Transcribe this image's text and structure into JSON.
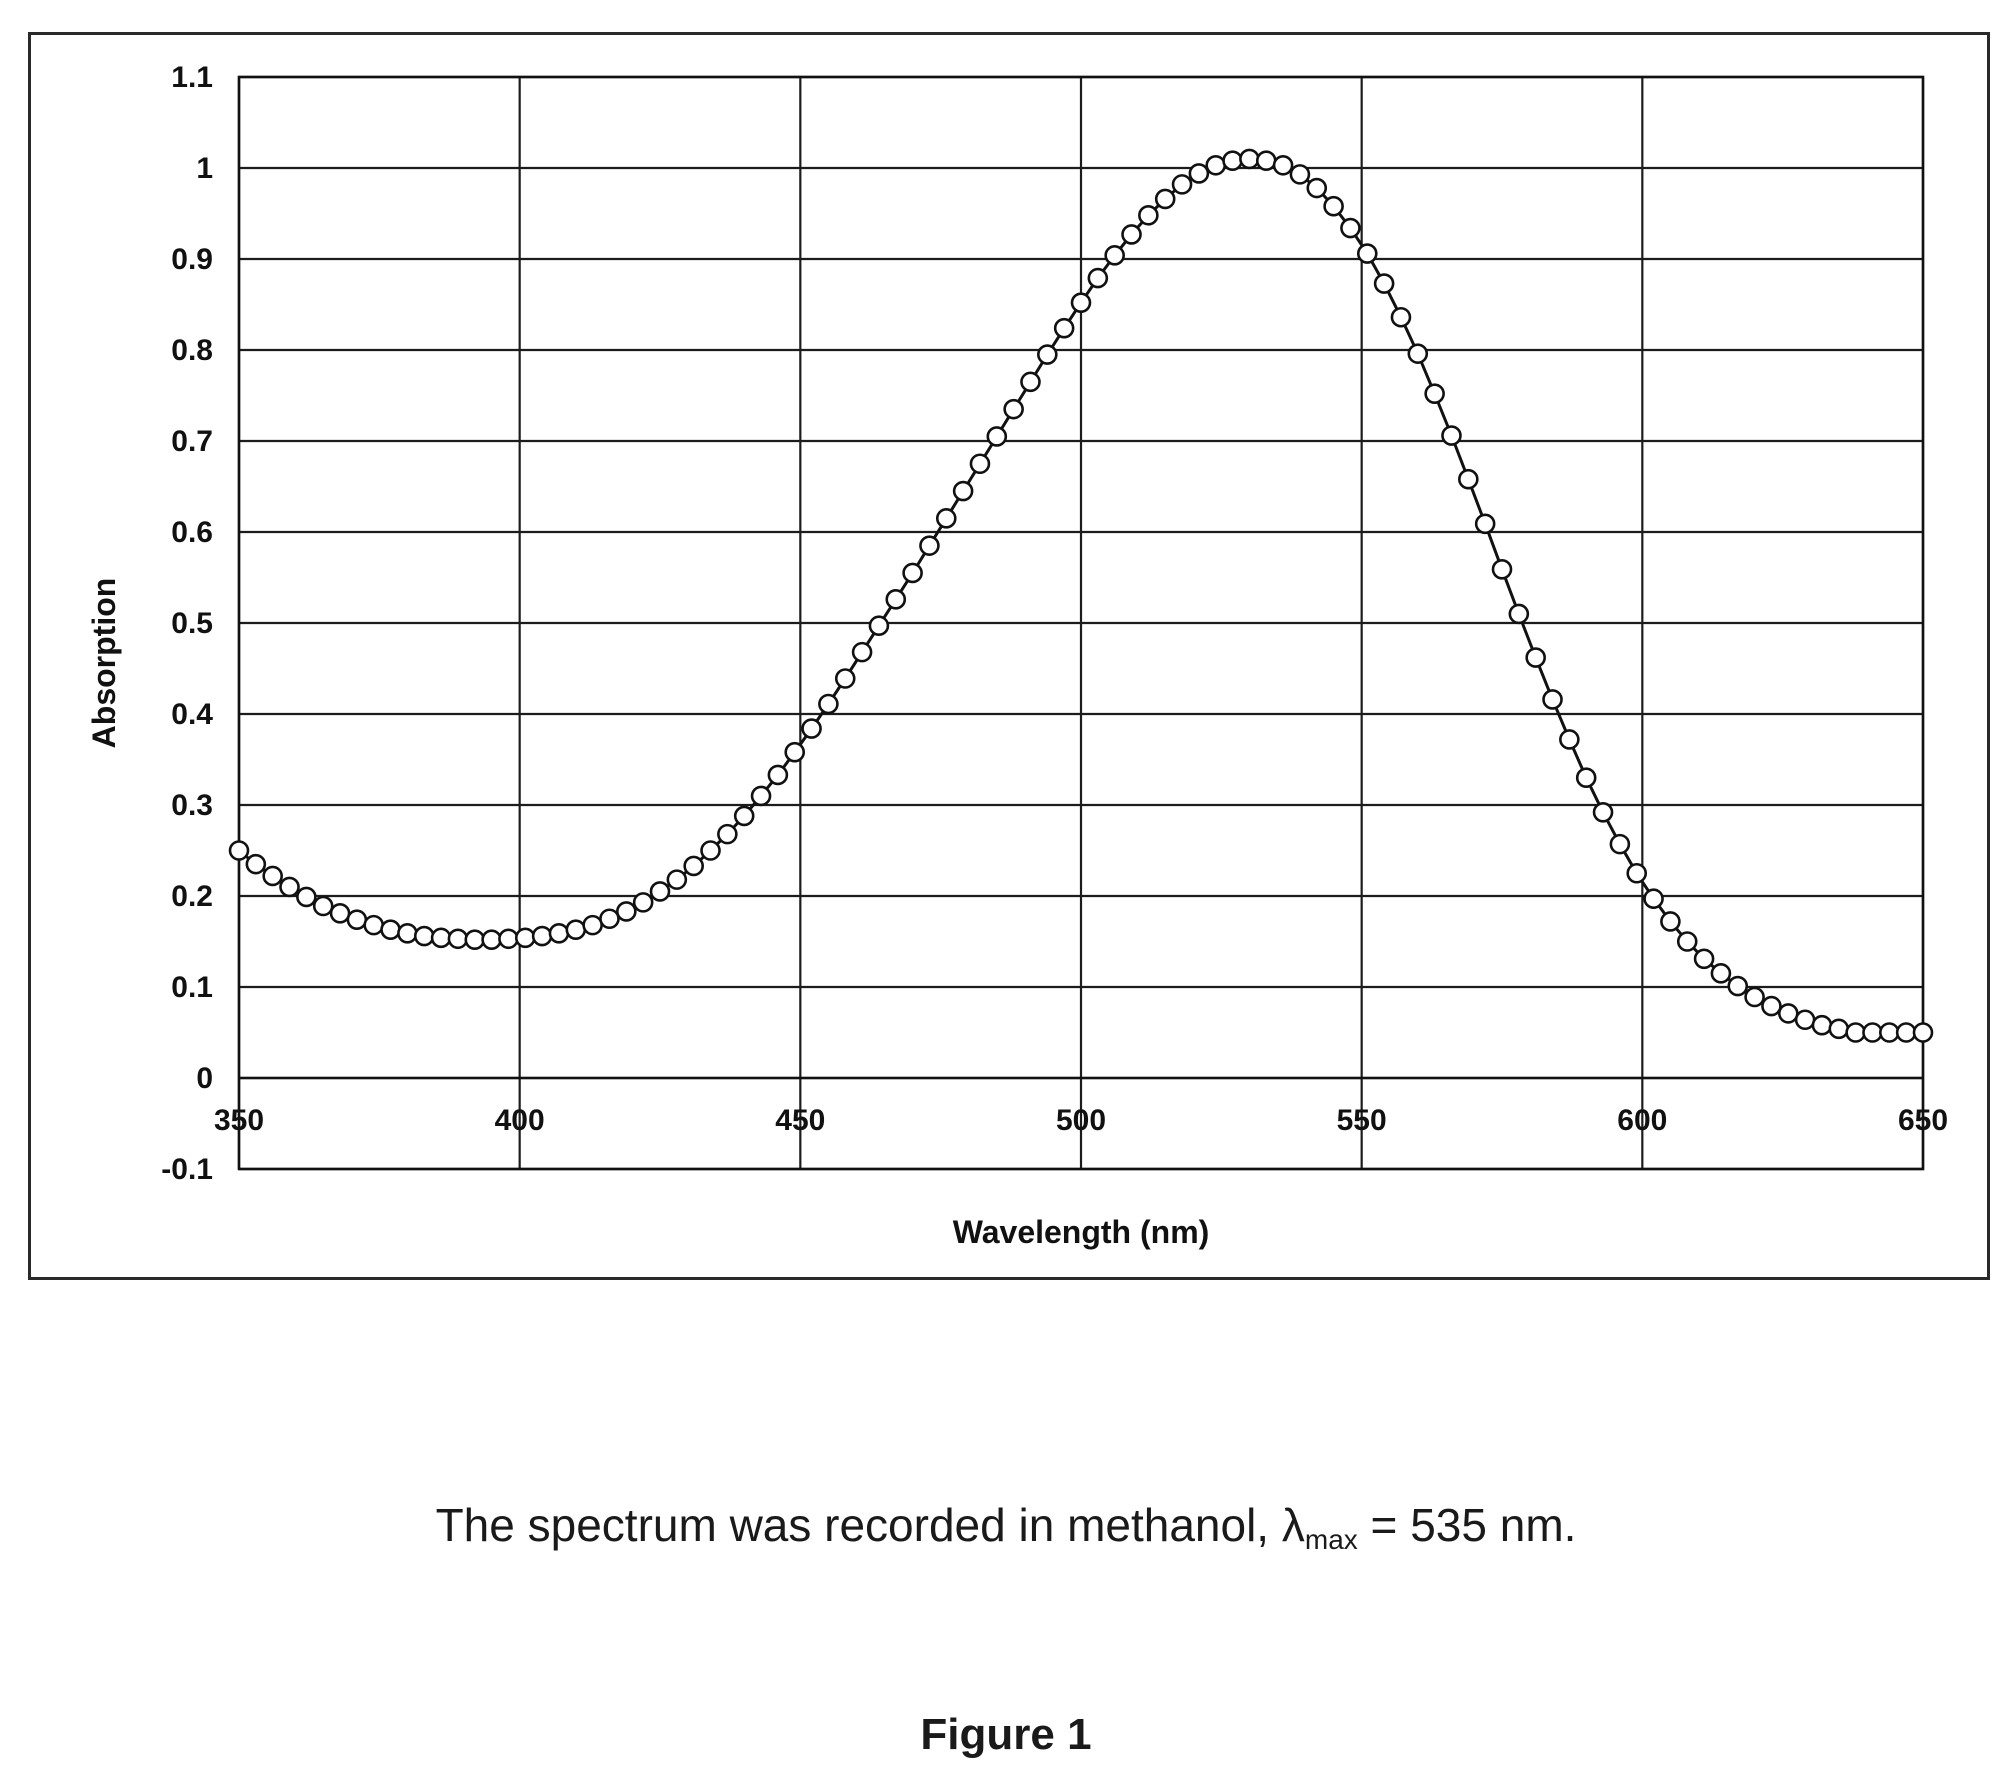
{
  "chart_data": {
    "type": "scatter",
    "xlabel": "Wavelength (nm)",
    "ylabel": "Absorption",
    "xlim": [
      350,
      650
    ],
    "ylim": [
      -0.1,
      1.1
    ],
    "x_ticks": [
      350,
      400,
      450,
      500,
      550,
      600,
      650
    ],
    "y_ticks": [
      -0.1,
      0,
      0.1,
      0.2,
      0.3,
      0.4,
      0.5,
      0.6,
      0.7,
      0.8,
      0.9,
      1,
      1.1
    ],
    "x_tick_labels": [
      "350",
      "400",
      "450",
      "500",
      "550",
      "600",
      "650"
    ],
    "y_tick_labels": [
      "-0.1",
      "0",
      "0.1",
      "0.2",
      "0.3",
      "0.4",
      "0.5",
      "0.6",
      "0.7",
      "0.8",
      "0.9",
      "1",
      "1.1"
    ],
    "grid": true,
    "marker": "open-circle",
    "line_color": "#111111",
    "series": [
      {
        "x": [
          350,
          353,
          356,
          359,
          362,
          365,
          368,
          371,
          374,
          377,
          380,
          383,
          386,
          389,
          392,
          395,
          398,
          401,
          404,
          407,
          410,
          413,
          416,
          419,
          422,
          425,
          428,
          431,
          434,
          437,
          440,
          443,
          446,
          449,
          452,
          455,
          458,
          461,
          464,
          467,
          470,
          473,
          476,
          479,
          482,
          485,
          488,
          491,
          494,
          497,
          500,
          503,
          506,
          509,
          512,
          515,
          518,
          521,
          524,
          527,
          530,
          533,
          536,
          539,
          542,
          545,
          548,
          551,
          554,
          557,
          560,
          563,
          566,
          569,
          572,
          575,
          578,
          581,
          584,
          587,
          590,
          593,
          596,
          599,
          602,
          605,
          608,
          611,
          614,
          617,
          620,
          623,
          626,
          629,
          632,
          635,
          638,
          641,
          644,
          647,
          650
        ],
        "y": [
          0.25,
          0.235,
          0.222,
          0.21,
          0.199,
          0.189,
          0.181,
          0.174,
          0.168,
          0.163,
          0.159,
          0.156,
          0.154,
          0.153,
          0.152,
          0.152,
          0.153,
          0.154,
          0.156,
          0.159,
          0.163,
          0.168,
          0.175,
          0.183,
          0.193,
          0.205,
          0.218,
          0.233,
          0.25,
          0.268,
          0.288,
          0.31,
          0.333,
          0.358,
          0.384,
          0.411,
          0.439,
          0.468,
          0.497,
          0.526,
          0.555,
          0.585,
          0.615,
          0.645,
          0.675,
          0.705,
          0.735,
          0.765,
          0.795,
          0.824,
          0.852,
          0.879,
          0.904,
          0.927,
          0.948,
          0.966,
          0.982,
          0.994,
          1.003,
          1.008,
          1.01,
          1.008,
          1.003,
          0.993,
          0.978,
          0.958,
          0.934,
          0.906,
          0.873,
          0.836,
          0.796,
          0.752,
          0.706,
          0.658,
          0.609,
          0.559,
          0.51,
          0.462,
          0.416,
          0.372,
          0.33,
          0.292,
          0.257,
          0.225,
          0.197,
          0.172,
          0.15,
          0.131,
          0.115,
          0.101,
          0.089,
          0.079,
          0.071,
          0.064,
          0.058,
          0.054,
          0.05,
          0.05,
          0.05,
          0.05,
          0.05
        ]
      }
    ]
  },
  "caption": {
    "text_before": "The spectrum was recorded in methanol, λ",
    "subscript": "max",
    "text_after": " = 535 nm."
  },
  "figure_label": "Figure 1"
}
